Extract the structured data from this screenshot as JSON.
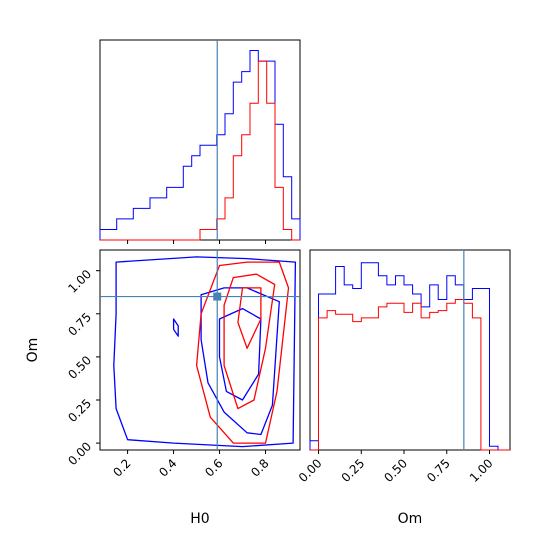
{
  "chart_data": {
    "type": "corner",
    "parameters": [
      "H0",
      "Om"
    ],
    "truth": {
      "H0": 0.59,
      "Om": 0.85
    },
    "truth_color": "#4682b4",
    "series_colors": {
      "blue": "#0000ff",
      "red": "#ff0000"
    },
    "xlabels": {
      "H0": "H0",
      "Om": "Om"
    },
    "ylabels": {
      "Om": "Om"
    },
    "panels": [
      {
        "id": "hist-H0",
        "type": "step-histogram",
        "xlim": [
          0.08,
          0.95
        ],
        "ticks": [
          0.2,
          0.4,
          0.6,
          0.8
        ],
        "tick_labels": [],
        "bin_edges": [
          0.08,
          0.11625,
          0.1525,
          0.18875,
          0.225,
          0.26125,
          0.2975,
          0.33375,
          0.37,
          0.40625,
          0.4425,
          0.47875,
          0.515,
          0.55125,
          0.5875,
          0.62375,
          0.66,
          0.69625,
          0.7325,
          0.76875,
          0.805,
          0.84125,
          0.8775,
          0.91375,
          0.95
        ],
        "blue": [
          1,
          1,
          2,
          2,
          3,
          3,
          4,
          4,
          5,
          5,
          7,
          8,
          9,
          9,
          10,
          12,
          15,
          16,
          18,
          17,
          17,
          11,
          6,
          2
        ],
        "red": [
          0,
          0,
          0,
          0,
          0,
          0,
          0,
          0,
          0,
          0,
          0,
          0,
          1,
          1,
          2,
          4,
          8,
          10,
          13,
          17,
          13,
          5,
          1,
          0
        ],
        "ylim": [
          0,
          19
        ]
      },
      {
        "id": "contour-H0-Om",
        "type": "contour",
        "xlim": [
          0.08,
          0.95
        ],
        "ylim": [
          -0.04,
          1.12
        ],
        "xticks": [
          0.2,
          0.4,
          0.6,
          0.8
        ],
        "xtick_labels": [
          "0.2",
          "0.4",
          "0.6",
          "0.8"
        ],
        "yticks": [
          0.0,
          0.25,
          0.5,
          0.75,
          1.0
        ],
        "ytick_labels": [
          "0.00",
          "0.25",
          "0.50",
          "0.75",
          "1.00"
        ],
        "blue_contours": [
          [
            [
              0.15,
              1.05
            ],
            [
              0.5,
              1.08
            ],
            [
              0.72,
              1.07
            ],
            [
              0.93,
              1.05
            ],
            [
              0.92,
              0.0
            ],
            [
              0.7,
              -0.02
            ],
            [
              0.4,
              0.0
            ],
            [
              0.2,
              0.02
            ],
            [
              0.15,
              0.2
            ],
            [
              0.14,
              0.45
            ],
            [
              0.15,
              0.75
            ]
          ],
          [
            [
              0.52,
              0.86
            ],
            [
              0.62,
              0.9
            ],
            [
              0.72,
              0.9
            ],
            [
              0.86,
              0.82
            ],
            [
              0.83,
              0.22
            ],
            [
              0.78,
              0.05
            ],
            [
              0.72,
              0.06
            ],
            [
              0.62,
              0.18
            ],
            [
              0.55,
              0.35
            ],
            [
              0.52,
              0.6
            ]
          ],
          [
            [
              0.6,
              0.72
            ],
            [
              0.7,
              0.78
            ],
            [
              0.78,
              0.72
            ],
            [
              0.77,
              0.4
            ],
            [
              0.7,
              0.25
            ],
            [
              0.63,
              0.3
            ],
            [
              0.6,
              0.5
            ]
          ],
          [
            [
              0.4,
              0.72
            ],
            [
              0.42,
              0.68
            ],
            [
              0.42,
              0.62
            ],
            [
              0.4,
              0.66
            ]
          ]
        ],
        "red_contours": [
          [
            [
              0.6,
              1.03
            ],
            [
              0.72,
              1.05
            ],
            [
              0.86,
              1.05
            ],
            [
              0.9,
              0.9
            ],
            [
              0.85,
              0.3
            ],
            [
              0.8,
              0.0
            ],
            [
              0.66,
              0.0
            ],
            [
              0.56,
              0.15
            ],
            [
              0.5,
              0.45
            ],
            [
              0.52,
              0.75
            ]
          ],
          [
            [
              0.66,
              0.96
            ],
            [
              0.76,
              0.98
            ],
            [
              0.84,
              0.92
            ],
            [
              0.8,
              0.55
            ],
            [
              0.75,
              0.25
            ],
            [
              0.68,
              0.2
            ],
            [
              0.62,
              0.45
            ],
            [
              0.62,
              0.8
            ]
          ],
          [
            [
              0.7,
              0.9
            ],
            [
              0.78,
              0.9
            ],
            [
              0.78,
              0.72
            ],
            [
              0.72,
              0.55
            ],
            [
              0.68,
              0.7
            ]
          ]
        ]
      },
      {
        "id": "hist-Om",
        "type": "step-histogram",
        "xlim": [
          -0.05,
          1.12
        ],
        "ticks": [
          0.0,
          0.25,
          0.5,
          0.75,
          1.0
        ],
        "tick_labels": [
          "0.00",
          "0.25",
          "0.50",
          "0.75",
          "1.00"
        ],
        "bin_edges": [
          -0.05,
          0.0,
          0.05,
          0.1,
          0.15,
          0.2,
          0.25,
          0.3,
          0.35,
          0.4,
          0.45,
          0.5,
          0.55,
          0.6,
          0.65,
          0.7,
          0.75,
          0.8,
          0.85,
          0.9,
          0.95,
          1.0,
          1.05,
          1.12
        ],
        "blue": [
          0.05,
          0.85,
          0.85,
          1.0,
          0.9,
          0.88,
          1.02,
          1.02,
          0.95,
          0.9,
          0.95,
          0.9,
          0.85,
          0.78,
          0.9,
          0.82,
          0.95,
          0.9,
          0.82,
          0.88,
          0.88,
          0.02,
          0.0
        ],
        "red": [
          0.0,
          0.72,
          0.76,
          0.74,
          0.74,
          0.7,
          0.72,
          0.72,
          0.78,
          0.8,
          0.8,
          0.75,
          0.8,
          0.72,
          0.75,
          0.76,
          0.8,
          0.82,
          0.8,
          0.72,
          0.0,
          0.0,
          0.0
        ],
        "ylim": [
          0,
          1.09
        ]
      }
    ]
  }
}
